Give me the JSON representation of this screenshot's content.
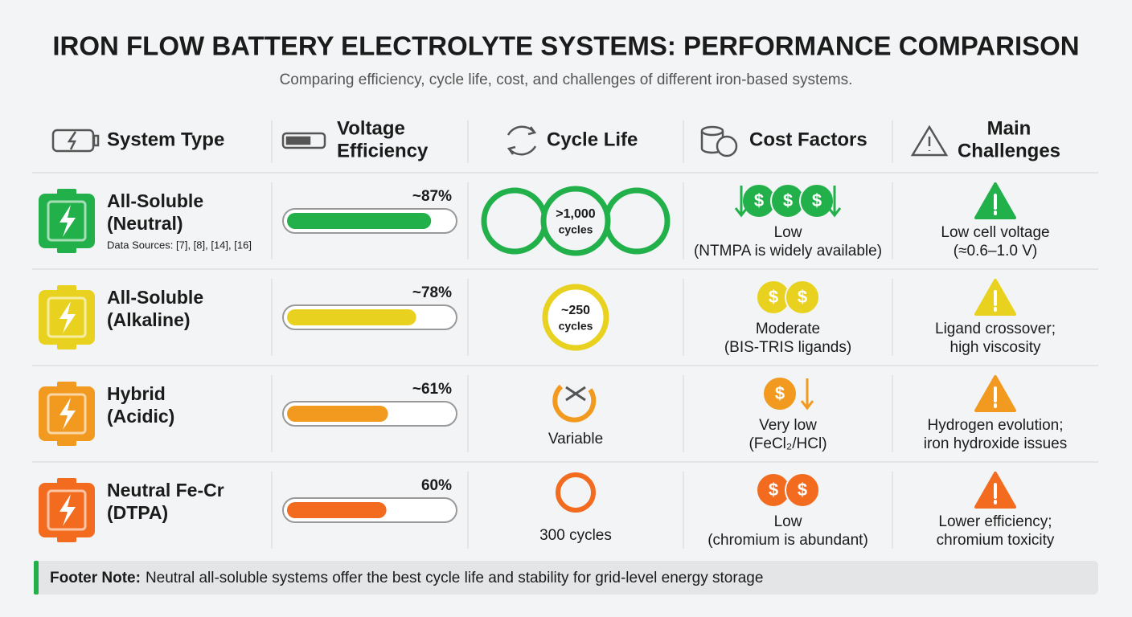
{
  "header": {
    "title": "IRON FLOW BATTERY ELECTROLYTE SYSTEMS: PERFORMANCE COMPARISON",
    "subtitle": "Comparing efficiency, cycle life, cost, and challenges of different iron-based systems."
  },
  "table": {
    "columns": [
      [
        "System Type"
      ],
      [
        "Voltage",
        "Efficiency"
      ],
      [
        "Cycle Life"
      ],
      [
        "Cost Factors"
      ],
      [
        "Main",
        "Challenges"
      ]
    ],
    "rows": [
      {
        "color": "#22b04b",
        "name": [
          "All-Soluble",
          "(Neutral)"
        ],
        "sources": "Data Sources: [7], [8], [14], [16]",
        "efficiency": 87,
        "efficiency_label": "~87%",
        "cycle_life": [
          ">1,000",
          "cycles"
        ],
        "cost": [
          "Low",
          "(NTMPA is widely available)"
        ],
        "challenges": [
          "Low cell voltage",
          "(≈0.6–1.0 V)"
        ]
      },
      {
        "color": "#e8d21f",
        "name": [
          "All-Soluble",
          "(Alkaline)"
        ],
        "efficiency": 78,
        "efficiency_label": "~78%",
        "cycle_life": [
          "~250",
          "cycles"
        ],
        "cost": [
          "Moderate",
          "(BIS-TRIS ligands)"
        ],
        "challenges": [
          "Ligand crossover;",
          "high viscosity"
        ]
      },
      {
        "color": "#f29a1f",
        "name": [
          "Hybrid",
          "(Acidic)"
        ],
        "efficiency": 61,
        "efficiency_label": "~61%",
        "cycle_life": [
          "Variable"
        ],
        "cost": [
          "Very low",
          "(FeCl₂/HCl)"
        ],
        "challenges": [
          "Hydrogen evolution;",
          "iron hydroxide issues"
        ]
      },
      {
        "color": "#f26b1f",
        "name": [
          "Neutral Fe-Cr",
          "(DTPA)"
        ],
        "efficiency": 60,
        "efficiency_label": "60%",
        "cycle_life": [
          "300 cycles"
        ],
        "cost": [
          "Low",
          "(chromium is abundant)"
        ],
        "challenges": [
          "Lower efficiency;",
          "chromium toxicity"
        ]
      }
    ]
  },
  "footer": {
    "label": "Footer Note:",
    "text": "Neutral all-soluble systems offer the best cycle life and stability for grid-level energy storage"
  }
}
